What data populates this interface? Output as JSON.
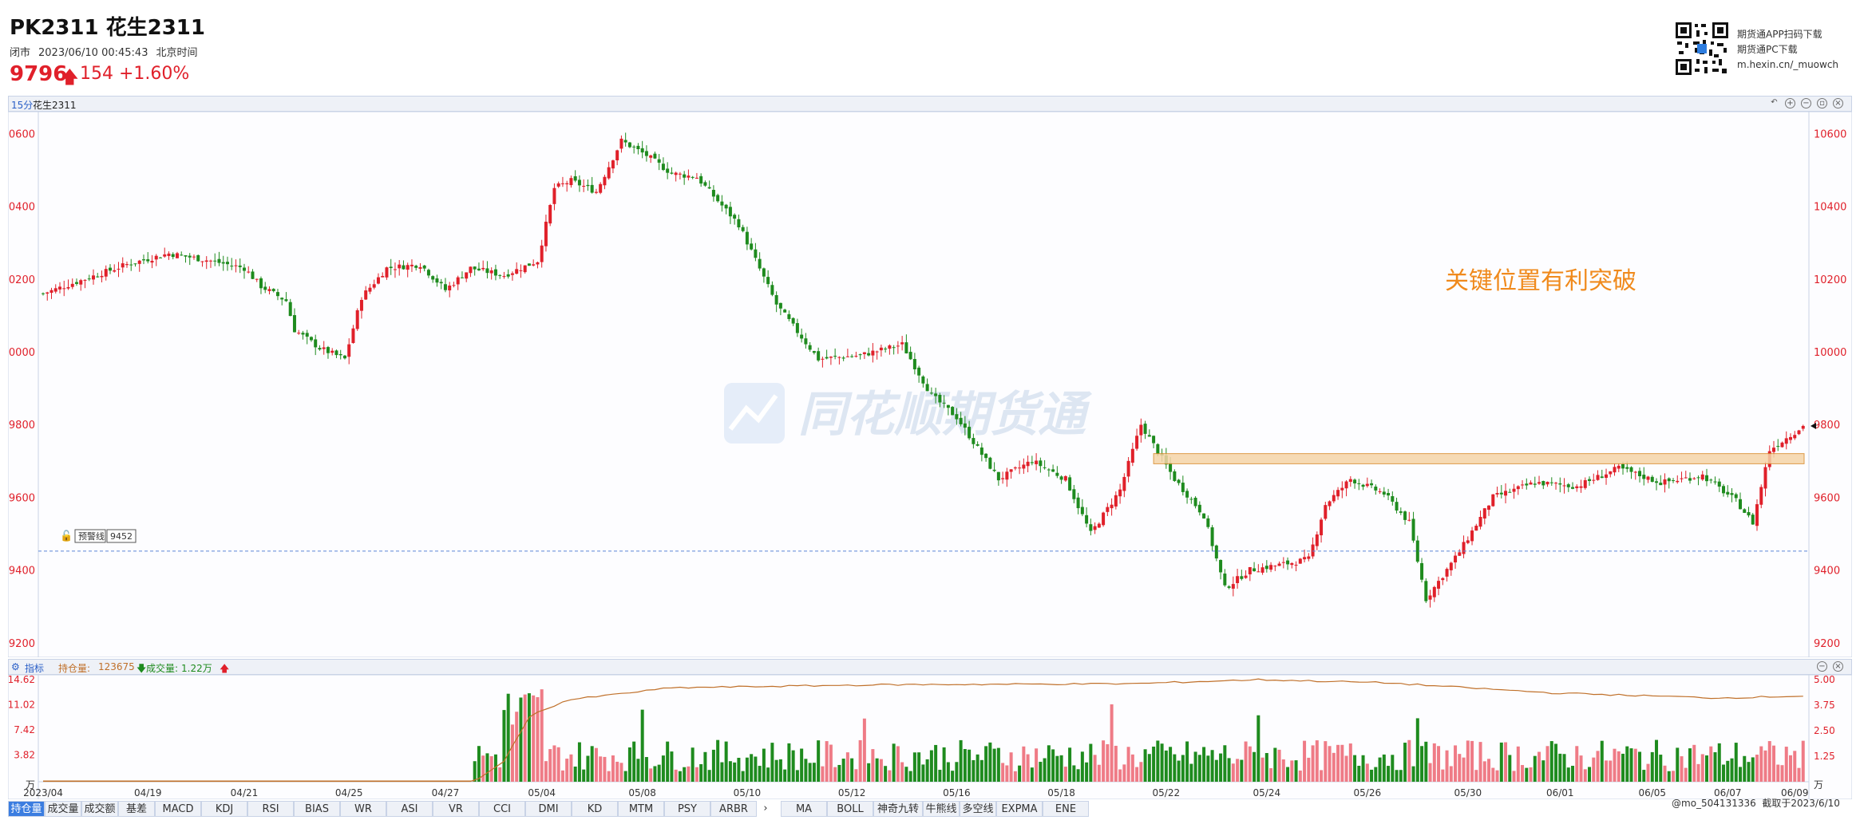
{
  "header": {
    "symbol": "PK2311 花生2311",
    "status": "闭市",
    "datetime": "2023/06/10 00:45:43",
    "timezone": "北京时间",
    "price": "9796",
    "arrow": "🡅",
    "change": "154",
    "change_pct": "+1.60%",
    "up_color": "#e0202a",
    "down_color": "#1e8b1e"
  },
  "promo": {
    "line1": "期货通APP扫码下载",
    "line2": "期货通PC下载",
    "line3": "m.hexin.cn/_muowch"
  },
  "toolbar": {
    "period": "15分",
    "name": "花生2311",
    "icons": [
      "undo-icon",
      "zoom-in-icon",
      "zoom-out-icon",
      "fullscreen-icon",
      "close-icon"
    ]
  },
  "watermark": "同花顺期货通",
  "annotation": "关键位置有利突破",
  "alert": {
    "label": "预警线",
    "value": "9452"
  },
  "indicator_bar": {
    "label": "指标",
    "oi_label": "持仓量:",
    "oi_value": "123675",
    "vol_arrow": "🡇",
    "vol_label": "成交量:",
    "vol_value": "1.22万",
    "tail_arrow": "🡅"
  },
  "tabs": [
    "持仓量",
    "成交量",
    "成交额",
    "基差",
    "MACD",
    "KDJ",
    "RSI",
    "BIAS",
    "WR",
    "ASI",
    "VR",
    "CCI",
    "DMI",
    "KD",
    "MTM",
    "PSY",
    "ARBR",
    "›",
    "MA",
    "BOLL",
    "神奇九转",
    "牛熊线",
    "多空线",
    "EXPMA",
    "ENE"
  ],
  "active_tab": "持仓量",
  "footer": {
    "user": "@mo_504131336",
    "captured": "截取于2023/6/10"
  },
  "chart_data": [
    {
      "type": "candlestick",
      "series": [
        {
          "name": "花生2311 15分"
        }
      ],
      "x_ticks": [
        "2023/04",
        "04/19",
        "04/21",
        "04/25",
        "04/27",
        "05/04",
        "05/08",
        "05/10",
        "05/12",
        "05/16",
        "05/18",
        "05/22",
        "05/24",
        "05/26",
        "05/30",
        "06/01",
        "06/05",
        "06/07",
        "06/09"
      ],
      "y_ticks": [
        9200,
        9400,
        9600,
        9800,
        10000,
        10200,
        10400,
        10600
      ],
      "ylim": [
        9160,
        10660
      ],
      "key_level_band": [
        9692,
        9720
      ],
      "alert_line": 9452,
      "current_price": 9796,
      "price_path": [
        [
          0,
          10160
        ],
        [
          10,
          10200
        ],
        [
          20,
          10240
        ],
        [
          30,
          10270
        ],
        [
          40,
          10250
        ],
        [
          48,
          10230
        ],
        [
          52,
          10180
        ],
        [
          58,
          10140
        ],
        [
          60,
          10060
        ],
        [
          66,
          10010
        ],
        [
          72,
          9980
        ],
        [
          76,
          10150
        ],
        [
          82,
          10230
        ],
        [
          90,
          10240
        ],
        [
          96,
          10170
        ],
        [
          102,
          10230
        ],
        [
          110,
          10210
        ],
        [
          118,
          10250
        ],
        [
          122,
          10450
        ],
        [
          126,
          10470
        ],
        [
          132,
          10440
        ],
        [
          138,
          10580
        ],
        [
          144,
          10540
        ],
        [
          150,
          10490
        ],
        [
          156,
          10480
        ],
        [
          166,
          10350
        ],
        [
          175,
          10130
        ],
        [
          185,
          9980
        ],
        [
          195,
          9990
        ],
        [
          205,
          10020
        ],
        [
          212,
          9880
        ],
        [
          218,
          9820
        ],
        [
          228,
          9650
        ],
        [
          236,
          9700
        ],
        [
          244,
          9650
        ],
        [
          250,
          9500
        ],
        [
          257,
          9620
        ],
        [
          262,
          9800
        ],
        [
          270,
          9650
        ],
        [
          277,
          9550
        ],
        [
          282,
          9350
        ],
        [
          288,
          9400
        ],
        [
          298,
          9420
        ],
        [
          302,
          9430
        ],
        [
          306,
          9580
        ],
        [
          312,
          9650
        ],
        [
          320,
          9610
        ],
        [
          326,
          9530
        ],
        [
          330,
          9320
        ],
        [
          338,
          9450
        ],
        [
          346,
          9600
        ],
        [
          356,
          9640
        ],
        [
          366,
          9630
        ],
        [
          376,
          9680
        ],
        [
          386,
          9640
        ],
        [
          396,
          9660
        ],
        [
          404,
          9590
        ],
        [
          408,
          9530
        ],
        [
          412,
          9730
        ],
        [
          420,
          9796
        ]
      ],
      "volume_ylim": [
        0,
        14.62
      ],
      "volume_y_ticks": [
        3.82,
        7.42,
        11.02,
        14.62
      ],
      "volume_unit": "万",
      "oi_right_ticks": [
        1.25,
        2.5,
        3.75,
        5.0
      ],
      "oi_path": [
        [
          0,
          0.02
        ],
        [
          103,
          0.02
        ],
        [
          110,
          1.0
        ],
        [
          116,
          3.2
        ],
        [
          125,
          4.0
        ],
        [
          150,
          4.6
        ],
        [
          200,
          4.75
        ],
        [
          260,
          4.8
        ],
        [
          290,
          5.0
        ],
        [
          320,
          4.85
        ],
        [
          360,
          4.35
        ],
        [
          400,
          4.1
        ],
        [
          420,
          4.2
        ]
      ]
    }
  ]
}
